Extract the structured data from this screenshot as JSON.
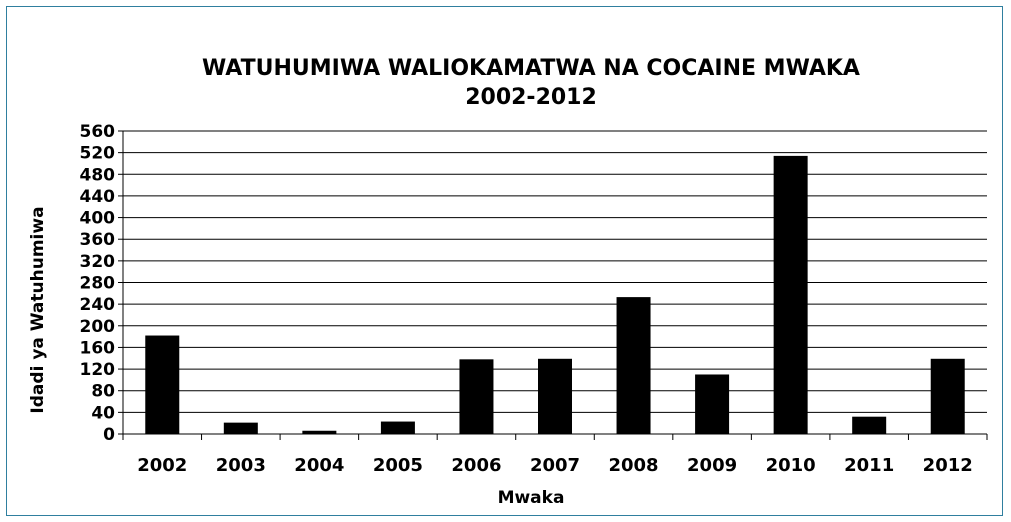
{
  "chart_data": {
    "type": "bar",
    "title": "WATUHUMIWA WALIOKAMATWA NA COCAINE MWAKA",
    "subtitle": "2002-2012",
    "xlabel": "Mwaka",
    "ylabel": "Idadi ya Watuhumiwa",
    "ylim": [
      0,
      560
    ],
    "ytick_step": 40,
    "yticks": [
      "0",
      "40",
      "80",
      "120",
      "160",
      "200",
      "240",
      "280",
      "320",
      "360",
      "400",
      "440",
      "480",
      "520",
      "560"
    ],
    "grid": true,
    "legend": "none",
    "categories": [
      "2002",
      "2003",
      "2004",
      "2005",
      "2006",
      "2007",
      "2008",
      "2009",
      "2010",
      "2011",
      "2012"
    ],
    "series": [
      {
        "values": [
          182,
          21,
          6,
          23,
          138,
          139,
          253,
          110,
          514,
          32,
          139
        ]
      }
    ],
    "colors": {
      "bar": "#000000",
      "grid": "#000000",
      "frame": "#2f7f9f"
    }
  }
}
